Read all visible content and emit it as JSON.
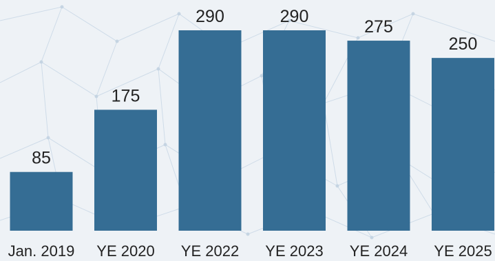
{
  "chart_data": {
    "type": "bar",
    "title": "",
    "xlabel": "",
    "ylabel": "",
    "categories": [
      "Jan. 2019",
      "YE 2020",
      "YE 2022",
      "YE 2023",
      "YE 2024",
      "YE 2025"
    ],
    "values": [
      85,
      175,
      290,
      290,
      275,
      250
    ],
    "data_labels": [
      "85",
      "175",
      "290",
      "290",
      "275",
      "250"
    ],
    "ylim": [
      0,
      290
    ],
    "grid": false,
    "bar_color": "#356d94",
    "label_color": "#222222"
  }
}
